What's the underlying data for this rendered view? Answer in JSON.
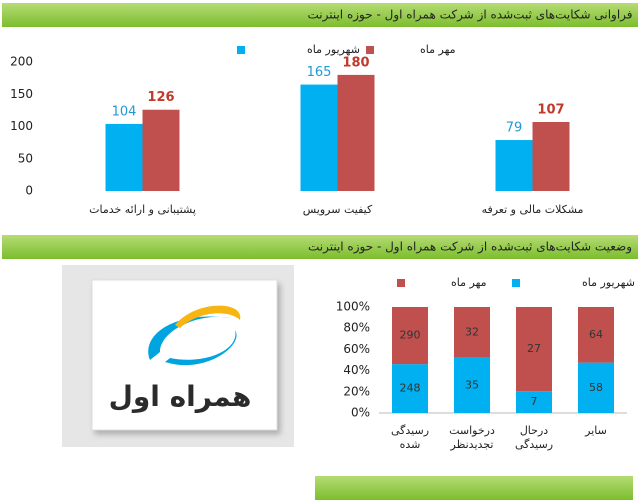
{
  "chart_data": [
    {
      "type": "bar",
      "title": "فراوانی شکایت‌های ثبت‌شده از شرکت همراه اول  - حوزه اینترنت",
      "categories": [
        "پشتیبانی و ارائه خدمات",
        "کیفیت سرویس",
        "مشکلات مالی و تعرفه"
      ],
      "series": [
        {
          "name": "شهریور ماه",
          "color": "#00b0f0",
          "values": [
            104,
            165,
            79
          ]
        },
        {
          "name": "مهر ماه",
          "color": "#c0504d",
          "values": [
            126,
            180,
            107
          ]
        }
      ],
      "ylim": [
        0,
        200
      ],
      "yticks": [
        0,
        50,
        100,
        150,
        200
      ],
      "grid": false
    },
    {
      "type": "stacked_percent_bar",
      "title": "وضعیت شکایت‌های ثبت‌شده از شرکت همراه اول  - حوزه اینترنت",
      "categories": [
        "رسیدگی شده",
        "درخواست تجدیدنظر",
        "درحال رسیدگی",
        "سایر"
      ],
      "series": [
        {
          "name": "شهریور ماه",
          "color": "#00b0f0",
          "values": [
            248,
            35,
            7,
            58
          ]
        },
        {
          "name": "مهر ماه",
          "color": "#c0504d",
          "values": [
            290,
            32,
            27,
            64
          ]
        }
      ],
      "ylim": [
        0,
        100
      ],
      "yticks": [
        {
          "value": 0,
          "label": "0%"
        },
        {
          "value": 20,
          "label": "20%"
        },
        {
          "value": 40,
          "label": "40%"
        },
        {
          "value": 60,
          "label": "60%"
        },
        {
          "value": 80,
          "label": "80%"
        },
        {
          "value": 100,
          "label": "100%"
        }
      ],
      "grid": false
    }
  ],
  "logo_text": "همراه اول"
}
